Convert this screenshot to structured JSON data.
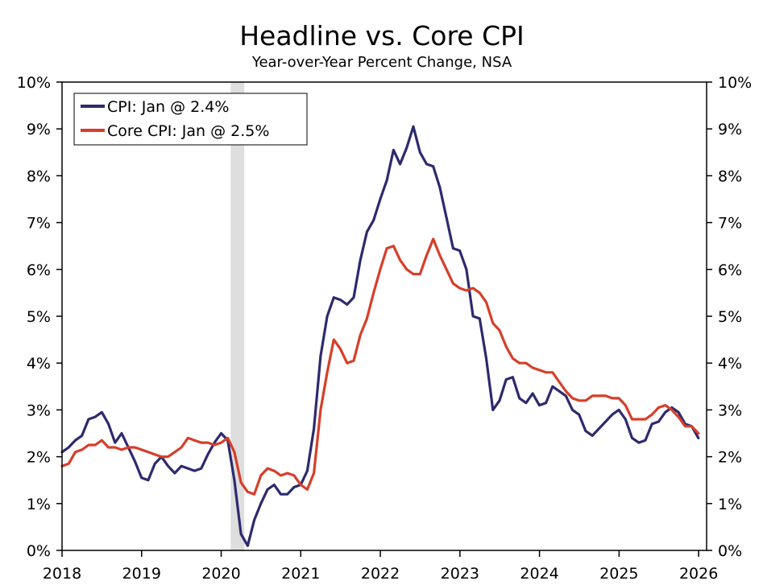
{
  "chart_data": {
    "type": "line",
    "title": "Headline vs. Core CPI",
    "subtitle": "Year-over-Year Percent Change, NSA",
    "xlabel": "",
    "ylabel": "",
    "xlim": [
      2018.0,
      2026.1
    ],
    "ylim": [
      0,
      10
    ],
    "x_ticks": [
      "2018",
      "2019",
      "2020",
      "2021",
      "2022",
      "2023",
      "2024",
      "2025",
      "2026"
    ],
    "y_ticks": [
      "0%",
      "1%",
      "2%",
      "3%",
      "4%",
      "5%",
      "6%",
      "7%",
      "8%",
      "9%",
      "10%"
    ],
    "legend_position": "top-left",
    "recession_shading": {
      "start": 2020.12,
      "end": 2020.29
    },
    "series": [
      {
        "name": "CPI: Jan @ 2.4%",
        "color": "#2e2a6e",
        "start": 2018.0,
        "step": 0.0833,
        "values": [
          2.1,
          2.2,
          2.35,
          2.45,
          2.8,
          2.85,
          2.95,
          2.7,
          2.3,
          2.5,
          2.2,
          1.9,
          1.55,
          1.5,
          1.85,
          2.0,
          1.8,
          1.65,
          1.8,
          1.75,
          1.7,
          1.75,
          2.05,
          2.3,
          2.5,
          2.35,
          1.5,
          0.35,
          0.1,
          0.65,
          1.0,
          1.3,
          1.4,
          1.2,
          1.2,
          1.35,
          1.4,
          1.7,
          2.6,
          4.15,
          5.0,
          5.4,
          5.35,
          5.25,
          5.4,
          6.2,
          6.8,
          7.05,
          7.5,
          7.9,
          8.55,
          8.25,
          8.6,
          9.05,
          8.5,
          8.25,
          8.2,
          7.75,
          7.1,
          6.45,
          6.4,
          6.0,
          5.0,
          4.95,
          4.1,
          3.0,
          3.2,
          3.65,
          3.7,
          3.25,
          3.15,
          3.35,
          3.1,
          3.15,
          3.5,
          3.4,
          3.3,
          3.0,
          2.9,
          2.55,
          2.45,
          2.6,
          2.75,
          2.9,
          3.0,
          2.8,
          2.4,
          2.3,
          2.35,
          2.7,
          2.75,
          2.95,
          3.05,
          2.95,
          2.7,
          2.65,
          2.4
        ]
      },
      {
        "name": "Core CPI: Jan @ 2.5%",
        "color": "#d63f2a",
        "start": 2018.0,
        "step": 0.0833,
        "values": [
          1.8,
          1.85,
          2.1,
          2.15,
          2.25,
          2.25,
          2.35,
          2.2,
          2.2,
          2.15,
          2.2,
          2.2,
          2.15,
          2.1,
          2.05,
          2.0,
          2.0,
          2.1,
          2.2,
          2.4,
          2.35,
          2.3,
          2.3,
          2.25,
          2.3,
          2.4,
          2.1,
          1.45,
          1.25,
          1.2,
          1.6,
          1.75,
          1.7,
          1.6,
          1.65,
          1.6,
          1.4,
          1.3,
          1.65,
          3.0,
          3.8,
          4.5,
          4.3,
          4.0,
          4.05,
          4.6,
          4.95,
          5.5,
          6.0,
          6.45,
          6.5,
          6.2,
          6.0,
          5.9,
          5.9,
          6.3,
          6.65,
          6.3,
          6.0,
          5.7,
          5.6,
          5.55,
          5.6,
          5.5,
          5.3,
          4.85,
          4.7,
          4.35,
          4.1,
          4.0,
          4.0,
          3.9,
          3.85,
          3.8,
          3.8,
          3.6,
          3.4,
          3.25,
          3.2,
          3.2,
          3.3,
          3.3,
          3.3,
          3.25,
          3.25,
          3.1,
          2.8,
          2.8,
          2.8,
          2.9,
          3.05,
          3.1,
          3.0,
          2.85,
          2.65,
          2.65,
          2.5
        ]
      }
    ]
  }
}
